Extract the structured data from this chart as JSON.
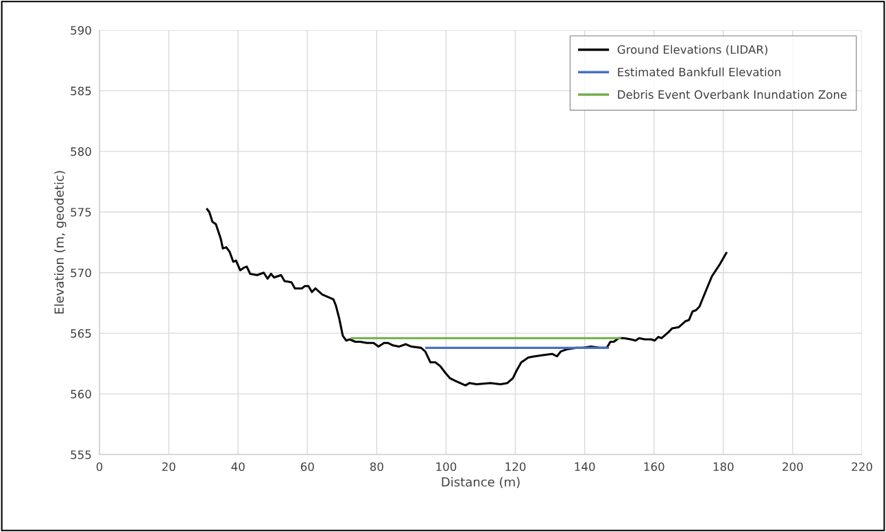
{
  "chart_data": {
    "type": "line",
    "xlabel": "Distance (m)",
    "ylabel": "Elevation (m, geodetic)",
    "xlim": [
      0,
      220
    ],
    "xticks": [
      0,
      20,
      40,
      60,
      80,
      100,
      120,
      140,
      160,
      180,
      200,
      220
    ],
    "ylim": [
      555,
      590
    ],
    "yticks": [
      555,
      560,
      565,
      570,
      575,
      580,
      585,
      590
    ],
    "grid": true,
    "legend": "top right",
    "marker": "none",
    "line_style": "solid",
    "series": [
      {
        "name": "Ground Elevations (LIDAR)",
        "color": "#000000",
        "x": [
          30.9,
          31.7,
          32.6,
          33.6,
          35.0,
          35.6,
          36.6,
          37.6,
          38.6,
          39.4,
          40.6,
          41.6,
          42.5,
          43.5,
          45.5,
          47.4,
          48.5,
          49.5,
          50.4,
          52.4,
          53.4,
          55.4,
          56.4,
          58.4,
          59.3,
          60.3,
          61.3,
          62.3,
          64.3,
          65.9,
          67.5,
          68.2,
          69.2,
          70.2,
          71.2,
          72.2,
          73.8,
          75.2,
          77.2,
          79.1,
          80.5,
          82.1,
          83.3,
          84.7,
          86.4,
          88.4,
          90.0,
          92.8,
          94.0,
          95.5,
          96.9,
          98.3,
          99.9,
          101.1,
          102.5,
          104.8,
          105.6,
          106.8,
          108.8,
          112.8,
          115.7,
          117.7,
          119.3,
          120.3,
          121.7,
          123.7,
          125.6,
          128.0,
          130.6,
          132.0,
          133.1,
          135.1,
          137.5,
          139.5,
          141.8,
          144.4,
          146.4,
          147.4,
          148.4,
          149.8,
          151.3,
          153.3,
          154.7,
          155.7,
          157.3,
          159.2,
          160.2,
          161.2,
          162.2,
          164.2,
          165.2,
          167.1,
          169.1,
          170.1,
          171.1,
          172.1,
          173.1,
          175.1,
          176.7,
          179.0,
          180.0,
          181.0
        ],
        "values": [
          575.3,
          575.0,
          574.2,
          574.0,
          572.8,
          572.0,
          572.1,
          571.7,
          570.9,
          571.0,
          570.2,
          570.4,
          570.5,
          569.9,
          569.8,
          570.0,
          569.5,
          569.9,
          569.6,
          569.8,
          569.3,
          569.2,
          568.7,
          568.7,
          568.9,
          568.9,
          568.4,
          568.7,
          568.2,
          568.0,
          567.8,
          567.3,
          566.2,
          564.8,
          564.4,
          564.5,
          564.3,
          564.3,
          564.2,
          564.2,
          563.9,
          564.2,
          564.2,
          564.0,
          563.9,
          564.1,
          563.9,
          563.8,
          563.5,
          562.6,
          562.6,
          562.3,
          561.7,
          561.3,
          561.1,
          560.8,
          560.7,
          560.9,
          560.8,
          560.9,
          560.8,
          560.9,
          561.3,
          561.9,
          562.6,
          563.0,
          563.1,
          563.2,
          563.3,
          563.1,
          563.5,
          563.7,
          563.8,
          563.8,
          563.9,
          563.8,
          563.8,
          564.3,
          564.3,
          564.6,
          564.6,
          564.5,
          564.4,
          564.6,
          564.5,
          564.5,
          564.4,
          564.7,
          564.6,
          565.1,
          565.4,
          565.5,
          566.0,
          566.1,
          566.8,
          566.9,
          567.2,
          568.6,
          569.7,
          570.7,
          571.2,
          571.7
        ]
      },
      {
        "name": "Estimated Bankfull Elevation",
        "color": "#4472c4",
        "x": [
          94,
          147
        ],
        "values": [
          563.8,
          563.8
        ]
      },
      {
        "name": "Debris Event Overbank Inundation Zone",
        "color": "#70ad47",
        "x": [
          72.5,
          150.5
        ],
        "values": [
          564.6,
          564.6
        ]
      }
    ]
  }
}
